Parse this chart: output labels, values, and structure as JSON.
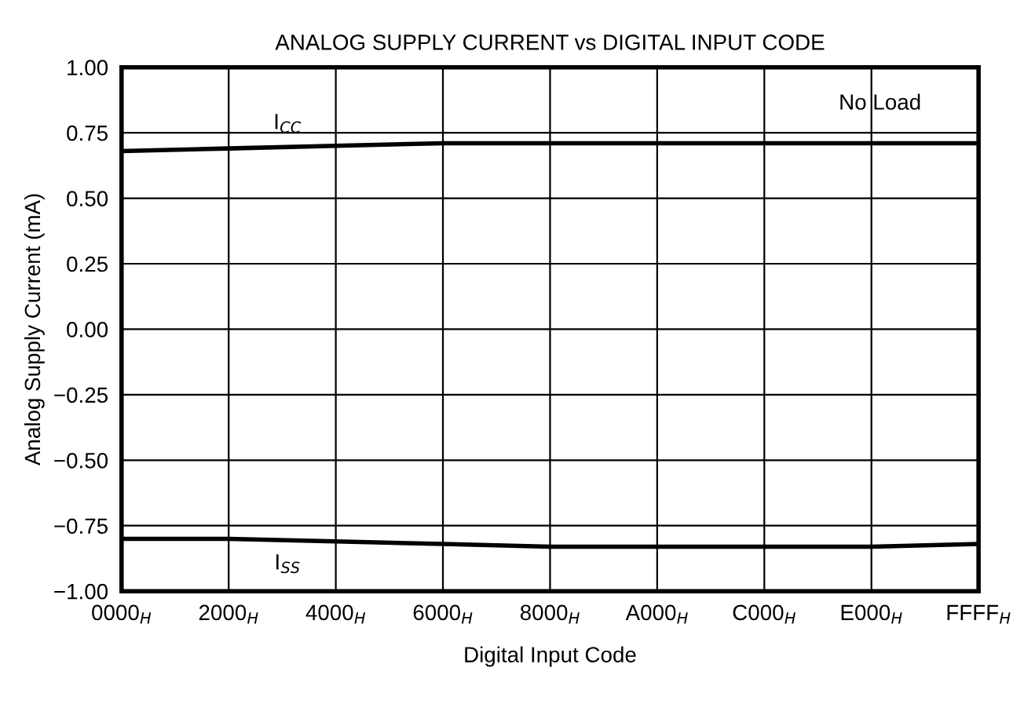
{
  "chart_data": {
    "type": "line",
    "title": "ANALOG SUPPLY CURRENT vs DIGITAL INPUT CODE",
    "xlabel": "Digital Input Code",
    "ylabel": "Analog Supply Current (mA)",
    "categories": [
      "0000$_{H}$",
      "2000$_{H}$",
      "4000$_{H}$",
      "6000$_{H}$",
      "8000$_{H}$",
      "A000$_{H}$",
      "C000$_{H}$",
      "E000$_{H}$",
      "FFFF$_{H}$"
    ],
    "series": [
      {
        "name": "I$_{CC}$",
        "color": "#000000",
        "values": [
          0.68,
          0.69,
          0.7,
          0.71,
          0.71,
          0.71,
          0.71,
          0.71,
          0.71
        ]
      },
      {
        "name": "I$_{SS}$",
        "color": "#000000",
        "values": [
          -0.8,
          -0.8,
          -0.81,
          -0.82,
          -0.83,
          -0.83,
          -0.83,
          -0.83,
          -0.82
        ]
      }
    ],
    "ylim": [
      -1.0,
      1.0
    ],
    "yticks": [
      {
        "value": -1.0,
        "label": "−1.00"
      },
      {
        "value": -0.75,
        "label": "−0.75"
      },
      {
        "value": -0.5,
        "label": "−0.50"
      },
      {
        "value": -0.25,
        "label": "−0.25"
      },
      {
        "value": 0.0,
        "label": "0.00"
      },
      {
        "value": 0.25,
        "label": "0.25"
      },
      {
        "value": 0.5,
        "label": "0.50"
      },
      {
        "value": 0.75,
        "label": "0.75"
      },
      {
        "value": 1.0,
        "label": "1.00"
      }
    ],
    "grid": true,
    "legend": false,
    "marker": "none",
    "line_style": "solid",
    "annotations": [
      "No Load"
    ]
  }
}
